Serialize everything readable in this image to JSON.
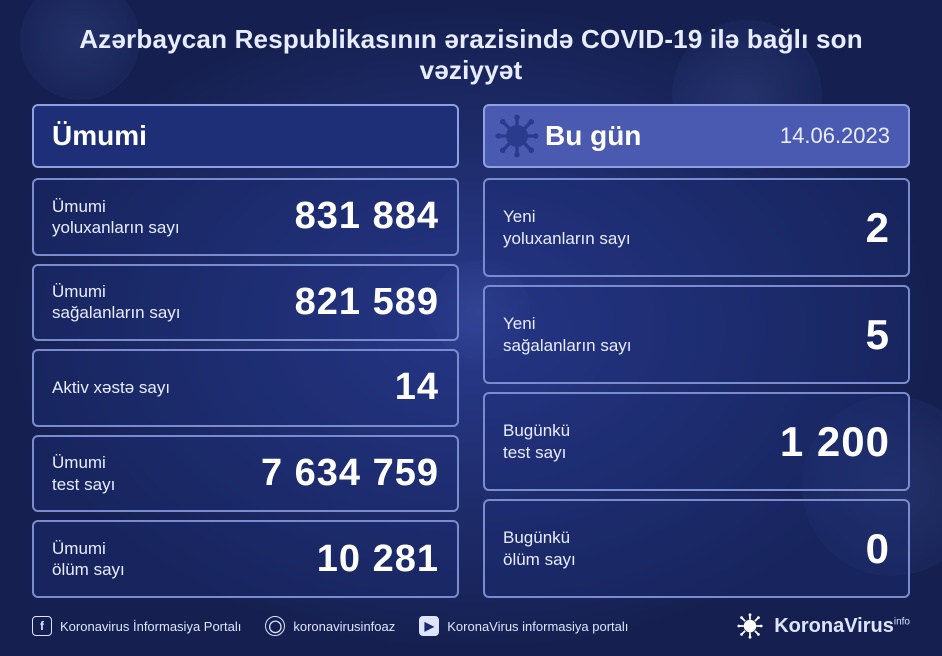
{
  "title": "Azərbaycan Respublikasının ərazisində COVID-19 ilə bağlı son vəziyyət",
  "date": "14.06.2023",
  "colors": {
    "background_center": "#2a3a8c",
    "background_edge": "#152050",
    "panel_border": "#8fa0e0",
    "row_border": "#7a8cd0",
    "left_header_bg": "#1e2f78",
    "right_header_bg": "#4a5ab0",
    "text": "#e8ecff"
  },
  "left": {
    "header": "Ümumi",
    "rows": [
      {
        "label": "Ümumi\nyoluxanların sayı",
        "value": "831 884"
      },
      {
        "label": "Ümumi\nsağalanların sayı",
        "value": "821 589"
      },
      {
        "label": "Aktiv xəstə sayı",
        "value": "14"
      },
      {
        "label": "Ümumi\ntest sayı",
        "value": "7 634 759"
      },
      {
        "label": "Ümumi\nölüm sayı",
        "value": "10 281"
      }
    ]
  },
  "right": {
    "header": "Bu gün",
    "rows": [
      {
        "label": "Yeni\nyoluxanların sayı",
        "value": "2"
      },
      {
        "label": "Yeni\nsağalanların sayı",
        "value": "5"
      },
      {
        "label": "Bugünkü\ntest sayı",
        "value": "1 200"
      },
      {
        "label": "Bugünkü\nölüm sayı",
        "value": "0"
      }
    ]
  },
  "footer": {
    "facebook": "Koronavirus İnformasiya Portalı",
    "instagram": "koronavirusinfoaz",
    "youtube": "KoronaVirus informasiya portalı",
    "brand": "KoronaVirus",
    "brand_suffix": "info"
  }
}
